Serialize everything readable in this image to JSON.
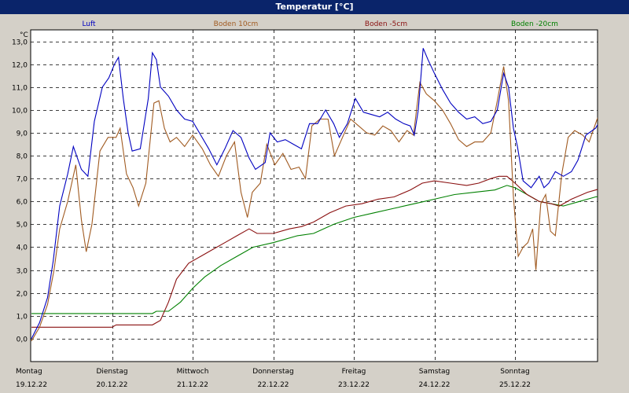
{
  "window": {
    "title": "Temperatur [°C]"
  },
  "chart_data": {
    "type": "line",
    "title": "Temperatur [°C]",
    "ylabel": "°C",
    "xlabel": "",
    "ylim": [
      -1,
      13.5
    ],
    "xlim": [
      0,
      7
    ],
    "yticks": [
      0,
      1,
      2,
      3,
      4,
      5,
      6,
      7,
      8,
      9,
      10,
      11,
      12,
      13
    ],
    "ytick_labels": [
      "0,0",
      "1,0",
      "2,0",
      "3,0",
      "4,0",
      "5,0",
      "6,0",
      "7,0",
      "8,0",
      "9,0",
      "10,0",
      "11,0",
      "12,0",
      "13,0"
    ],
    "xticks": [
      0,
      1,
      2,
      3,
      4,
      5,
      6
    ],
    "xtick_labels": [
      {
        "day": "Montag",
        "date": "19.12.22"
      },
      {
        "day": "Dienstag",
        "date": "20.12.22"
      },
      {
        "day": "Mittwoch",
        "date": "21.12.22"
      },
      {
        "day": "Donnerstag",
        "date": "22.12.22"
      },
      {
        "day": "Freitag",
        "date": "23.12.22"
      },
      {
        "day": "Samstag",
        "date": "24.12.22"
      },
      {
        "day": "Sonntag",
        "date": "25.12.22"
      }
    ],
    "grid": true,
    "legend": "top",
    "series": [
      {
        "name": "Luft",
        "color": "#0000c0",
        "points": [
          [
            0,
            0
          ],
          [
            0.1,
            0.7
          ],
          [
            0.2,
            1.8
          ],
          [
            0.27,
            3.4
          ],
          [
            0.35,
            5.8
          ],
          [
            0.45,
            7.2
          ],
          [
            0.52,
            8.4
          ],
          [
            0.62,
            7.4
          ],
          [
            0.7,
            7.1
          ],
          [
            0.78,
            9.5
          ],
          [
            0.88,
            11
          ],
          [
            0.96,
            11.4
          ],
          [
            1.03,
            12
          ],
          [
            1.08,
            12.3
          ],
          [
            1.14,
            10.5
          ],
          [
            1.2,
            9
          ],
          [
            1.25,
            8.2
          ],
          [
            1.35,
            8.3
          ],
          [
            1.45,
            10.5
          ],
          [
            1.5,
            12.5
          ],
          [
            1.55,
            12.2
          ],
          [
            1.6,
            11
          ],
          [
            1.7,
            10.6
          ],
          [
            1.8,
            10
          ],
          [
            1.9,
            9.6
          ],
          [
            2.0,
            9.5
          ],
          [
            2.1,
            8.9
          ],
          [
            2.2,
            8.3
          ],
          [
            2.3,
            7.6
          ],
          [
            2.4,
            8.3
          ],
          [
            2.5,
            9.1
          ],
          [
            2.6,
            8.8
          ],
          [
            2.7,
            7.9
          ],
          [
            2.78,
            7.4
          ],
          [
            2.9,
            7.7
          ],
          [
            2.96,
            9.0
          ],
          [
            3.05,
            8.6
          ],
          [
            3.15,
            8.7
          ],
          [
            3.25,
            8.5
          ],
          [
            3.35,
            8.3
          ],
          [
            3.45,
            9.4
          ],
          [
            3.55,
            9.4
          ],
          [
            3.65,
            10.0
          ],
          [
            3.75,
            9.4
          ],
          [
            3.82,
            8.8
          ],
          [
            3.92,
            9.4
          ],
          [
            4.02,
            10.5
          ],
          [
            4.12,
            9.9
          ],
          [
            4.22,
            9.8
          ],
          [
            4.32,
            9.7
          ],
          [
            4.42,
            9.9
          ],
          [
            4.52,
            9.6
          ],
          [
            4.62,
            9.4
          ],
          [
            4.7,
            9.3
          ],
          [
            4.75,
            8.9
          ],
          [
            4.8,
            10.0
          ],
          [
            4.86,
            12.7
          ],
          [
            4.92,
            12.2
          ],
          [
            5.0,
            11.6
          ],
          [
            5.1,
            10.9
          ],
          [
            5.2,
            10.3
          ],
          [
            5.3,
            9.9
          ],
          [
            5.4,
            9.6
          ],
          [
            5.5,
            9.7
          ],
          [
            5.6,
            9.4
          ],
          [
            5.7,
            9.5
          ],
          [
            5.78,
            10.0
          ],
          [
            5.86,
            11.6
          ],
          [
            5.92,
            11.0
          ],
          [
            5.98,
            9.2
          ],
          [
            6.03,
            8.4
          ],
          [
            6.1,
            6.9
          ],
          [
            6.2,
            6.6
          ],
          [
            6.3,
            7.1
          ],
          [
            6.36,
            6.6
          ],
          [
            6.42,
            6.8
          ],
          [
            6.5,
            7.3
          ],
          [
            6.6,
            7.1
          ],
          [
            6.7,
            7.3
          ],
          [
            6.78,
            7.8
          ],
          [
            6.88,
            8.9
          ],
          [
            7.0,
            9.2
          ],
          [
            7.1,
            9.8
          ],
          [
            7.2,
            11.0
          ],
          [
            7.3,
            11.8
          ],
          [
            7.4,
            11.7
          ],
          [
            7.5,
            11.0
          ]
        ]
      },
      {
        "name": "Boden 10cm",
        "color": "#a05a20",
        "points": [
          [
            0,
            -0.1
          ],
          [
            0.1,
            0.5
          ],
          [
            0.2,
            1.5
          ],
          [
            0.28,
            3.0
          ],
          [
            0.35,
            4.8
          ],
          [
            0.45,
            6.0
          ],
          [
            0.55,
            7.6
          ],
          [
            0.62,
            5.2
          ],
          [
            0.68,
            3.8
          ],
          [
            0.75,
            5.0
          ],
          [
            0.85,
            8.2
          ],
          [
            0.95,
            8.8
          ],
          [
            1.05,
            8.8
          ],
          [
            1.1,
            9.2
          ],
          [
            1.18,
            7.2
          ],
          [
            1.26,
            6.6
          ],
          [
            1.33,
            5.8
          ],
          [
            1.42,
            6.8
          ],
          [
            1.52,
            10.3
          ],
          [
            1.58,
            10.4
          ],
          [
            1.65,
            9.2
          ],
          [
            1.72,
            8.6
          ],
          [
            1.8,
            8.8
          ],
          [
            1.9,
            8.4
          ],
          [
            2.0,
            8.9
          ],
          [
            2.12,
            8.3
          ],
          [
            2.22,
            7.6
          ],
          [
            2.32,
            7.1
          ],
          [
            2.42,
            8.0
          ],
          [
            2.52,
            8.6
          ],
          [
            2.6,
            6.4
          ],
          [
            2.68,
            5.3
          ],
          [
            2.74,
            6.4
          ],
          [
            2.84,
            6.8
          ],
          [
            2.92,
            8.5
          ],
          [
            3.02,
            7.6
          ],
          [
            3.12,
            8.1
          ],
          [
            3.22,
            7.4
          ],
          [
            3.32,
            7.5
          ],
          [
            3.4,
            7.0
          ],
          [
            3.48,
            9.3
          ],
          [
            3.58,
            9.6
          ],
          [
            3.68,
            9.6
          ],
          [
            3.76,
            8.0
          ],
          [
            3.86,
            8.8
          ],
          [
            3.96,
            9.6
          ],
          [
            4.06,
            9.3
          ],
          [
            4.16,
            9.0
          ],
          [
            4.26,
            8.9
          ],
          [
            4.36,
            9.3
          ],
          [
            4.46,
            9.1
          ],
          [
            4.56,
            8.6
          ],
          [
            4.66,
            9.1
          ],
          [
            4.74,
            8.9
          ],
          [
            4.82,
            11.2
          ],
          [
            4.9,
            10.7
          ],
          [
            5.0,
            10.4
          ],
          [
            5.1,
            10.0
          ],
          [
            5.2,
            9.4
          ],
          [
            5.3,
            8.7
          ],
          [
            5.4,
            8.4
          ],
          [
            5.5,
            8.6
          ],
          [
            5.6,
            8.6
          ],
          [
            5.7,
            9.0
          ],
          [
            5.78,
            10.4
          ],
          [
            5.86,
            11.9
          ],
          [
            5.92,
            10.4
          ],
          [
            5.98,
            6.2
          ],
          [
            6.04,
            3.6
          ],
          [
            6.1,
            4.0
          ],
          [
            6.16,
            4.2
          ],
          [
            6.22,
            4.8
          ],
          [
            6.26,
            3.0
          ],
          [
            6.32,
            5.9
          ],
          [
            6.38,
            6.3
          ],
          [
            6.44,
            4.7
          ],
          [
            6.5,
            4.5
          ],
          [
            6.58,
            7.2
          ],
          [
            6.66,
            8.8
          ],
          [
            6.74,
            9.1
          ],
          [
            6.84,
            8.9
          ],
          [
            6.92,
            8.6
          ],
          [
            7.02,
            9.6
          ],
          [
            7.12,
            10.3
          ],
          [
            7.22,
            10.3
          ],
          [
            7.3,
            10.4
          ]
        ]
      },
      {
        "name": "Boden -5cm",
        "color": "#8a1010",
        "points": [
          [
            0,
            0.5
          ],
          [
            1.0,
            0.5
          ],
          [
            1.05,
            0.6
          ],
          [
            1.5,
            0.6
          ],
          [
            1.6,
            0.8
          ],
          [
            1.7,
            1.6
          ],
          [
            1.8,
            2.6
          ],
          [
            1.95,
            3.3
          ],
          [
            2.1,
            3.6
          ],
          [
            2.25,
            3.9
          ],
          [
            2.4,
            4.2
          ],
          [
            2.55,
            4.5
          ],
          [
            2.7,
            4.8
          ],
          [
            2.8,
            4.6
          ],
          [
            3.0,
            4.6
          ],
          [
            3.2,
            4.8
          ],
          [
            3.35,
            4.9
          ],
          [
            3.5,
            5.1
          ],
          [
            3.7,
            5.5
          ],
          [
            3.9,
            5.8
          ],
          [
            4.1,
            5.9
          ],
          [
            4.3,
            6.1
          ],
          [
            4.5,
            6.2
          ],
          [
            4.7,
            6.5
          ],
          [
            4.85,
            6.8
          ],
          [
            5.0,
            6.9
          ],
          [
            5.2,
            6.8
          ],
          [
            5.4,
            6.7
          ],
          [
            5.55,
            6.8
          ],
          [
            5.7,
            7.0
          ],
          [
            5.8,
            7.1
          ],
          [
            5.9,
            7.1
          ],
          [
            6.0,
            6.8
          ],
          [
            6.15,
            6.3
          ],
          [
            6.3,
            6.0
          ],
          [
            6.45,
            5.9
          ],
          [
            6.55,
            5.8
          ],
          [
            6.7,
            6.1
          ],
          [
            6.9,
            6.4
          ],
          [
            7.1,
            6.6
          ],
          [
            7.3,
            6.8
          ],
          [
            7.5,
            7.1
          ]
        ]
      },
      {
        "name": "Boden -20cm",
        "color": "#008000",
        "points": [
          [
            0,
            1.1
          ],
          [
            1.5,
            1.1
          ],
          [
            1.55,
            1.2
          ],
          [
            1.7,
            1.2
          ],
          [
            1.85,
            1.6
          ],
          [
            2.0,
            2.2
          ],
          [
            2.15,
            2.7
          ],
          [
            2.35,
            3.2
          ],
          [
            2.55,
            3.6
          ],
          [
            2.75,
            4.0
          ],
          [
            3.0,
            4.2
          ],
          [
            3.3,
            4.5
          ],
          [
            3.5,
            4.6
          ],
          [
            3.75,
            5.0
          ],
          [
            4.0,
            5.3
          ],
          [
            4.25,
            5.5
          ],
          [
            4.5,
            5.7
          ],
          [
            4.75,
            5.9
          ],
          [
            5.0,
            6.1
          ],
          [
            5.25,
            6.3
          ],
          [
            5.5,
            6.4
          ],
          [
            5.75,
            6.5
          ],
          [
            5.9,
            6.7
          ],
          [
            6.0,
            6.6
          ],
          [
            6.15,
            6.3
          ],
          [
            6.3,
            6.0
          ],
          [
            6.45,
            5.9
          ],
          [
            6.6,
            5.8
          ],
          [
            6.8,
            6.0
          ],
          [
            7.0,
            6.2
          ],
          [
            7.2,
            6.3
          ],
          [
            7.4,
            6.4
          ],
          [
            7.5,
            6.5
          ]
        ]
      }
    ]
  }
}
